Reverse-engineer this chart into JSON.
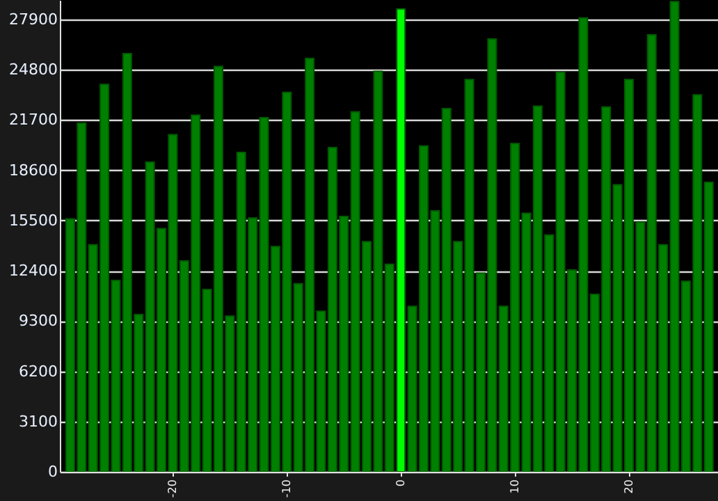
{
  "chart_data": {
    "type": "bar",
    "x": [
      -29,
      -28,
      -27,
      -26,
      -25,
      -24,
      -23,
      -22,
      -21,
      -20,
      -19,
      -18,
      -17,
      -16,
      -15,
      -14,
      -13,
      -12,
      -11,
      -10,
      -9,
      -8,
      -7,
      -6,
      -5,
      -4,
      -3,
      -2,
      -1,
      0,
      1,
      2,
      3,
      4,
      5,
      6,
      7,
      8,
      9,
      10,
      11,
      12,
      13,
      14,
      15,
      16,
      17,
      18,
      19,
      20,
      21,
      22,
      23,
      24,
      25,
      26,
      27
    ],
    "values": [
      15600,
      21500,
      14000,
      23900,
      11800,
      25800,
      9700,
      19100,
      15000,
      20800,
      13000,
      22000,
      11250,
      25000,
      9600,
      19700,
      15650,
      21850,
      13900,
      23400,
      11600,
      25500,
      9900,
      20000,
      15750,
      22200,
      14200,
      24700,
      12800,
      28550,
      10200,
      20100,
      16100,
      22400,
      14200,
      24200,
      12250,
      26700,
      10200,
      20250,
      15950,
      22550,
      14600,
      24650,
      12450,
      28000,
      10950,
      22500,
      17700,
      24200,
      15400,
      26950,
      14000,
      29000,
      11750,
      23250,
      17850
    ],
    "colors": [
      "#008000",
      "#008000",
      "#008000",
      "#008000",
      "#008000",
      "#008000",
      "#008000",
      "#008000",
      "#008000",
      "#008000",
      "#008000",
      "#008000",
      "#008000",
      "#008000",
      "#008000",
      "#008000",
      "#008000",
      "#008000",
      "#008000",
      "#008000",
      "#008000",
      "#008000",
      "#008000",
      "#008000",
      "#008000",
      "#008000",
      "#008000",
      "#008000",
      "#008000",
      "#00ff00",
      "#008000",
      "#008000",
      "#008000",
      "#008000",
      "#008000",
      "#008000",
      "#008000",
      "#008000",
      "#008000",
      "#008000",
      "#008000",
      "#008000",
      "#008000",
      "#008000",
      "#008000",
      "#008000",
      "#008000",
      "#008000",
      "#008000",
      "#008000",
      "#008000",
      "#008000",
      "#008000",
      "#008000",
      "#008000",
      "#008000",
      "#008000"
    ],
    "xlim": [
      -29.3,
      27.2
    ],
    "xticks": [
      -20,
      -10,
      0,
      10,
      20
    ],
    "ylim": [
      0,
      29100
    ],
    "yticks": [
      0,
      3100,
      6200,
      9300,
      12400,
      15500,
      18600,
      21700,
      24800,
      27900
    ],
    "grid": "y"
  }
}
